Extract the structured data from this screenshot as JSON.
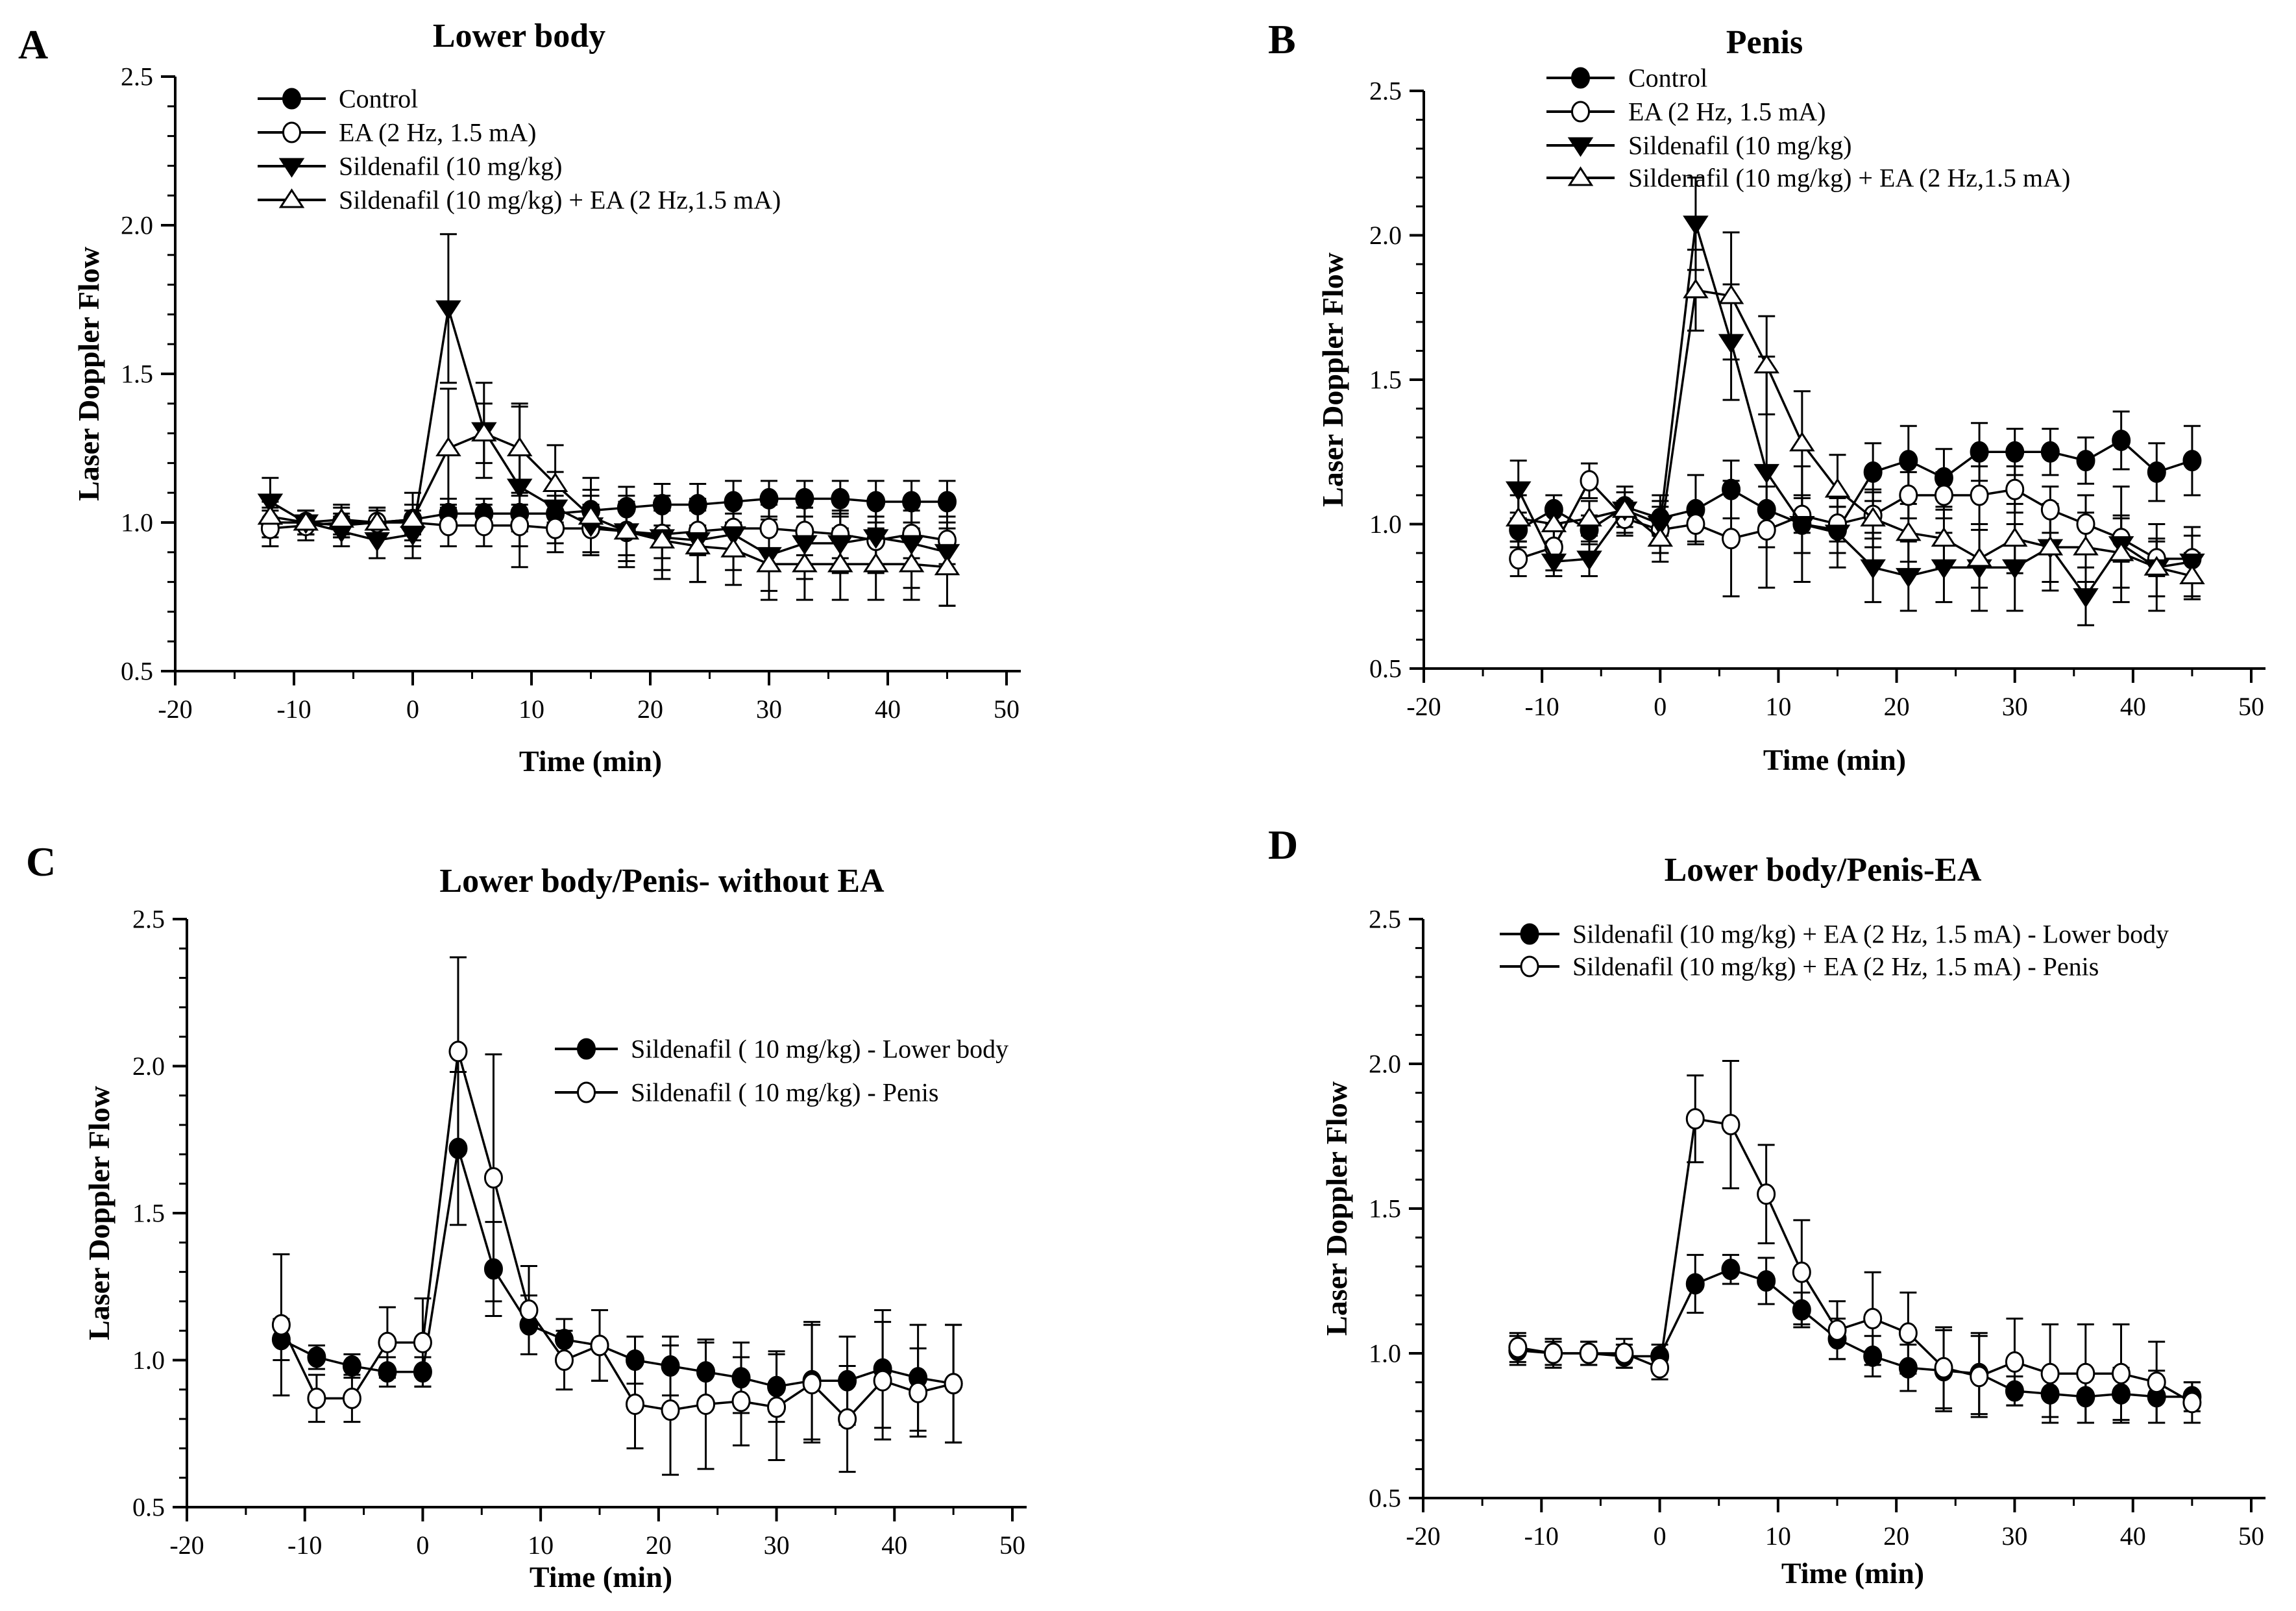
{
  "figure": {
    "background": "#ffffff",
    "ink": "#000000",
    "ylabel": "Laser Doppler Flow",
    "xlabel": "Time (min)"
  },
  "chart_data": [
    {
      "type": "line",
      "panel_label": "A",
      "title": "Lower body",
      "xlabel": "Time (min)",
      "ylabel": "Laser Doppler Flow",
      "xlim": [
        -20,
        50
      ],
      "ylim": [
        0.5,
        2.5
      ],
      "x_major_ticks": [
        -20,
        -10,
        0,
        10,
        20,
        30,
        40,
        50
      ],
      "x_tick_labels": [
        "-20",
        "-10",
        "0",
        "10",
        "20",
        "30",
        "40",
        "50"
      ],
      "y_major_ticks": [
        0.5,
        1.0,
        1.5,
        2.0,
        2.5
      ],
      "y_tick_labels": [
        "0.5",
        "1.0",
        "1.5",
        "2.0",
        "2.5"
      ],
      "x_minor_step": 5,
      "y_minor_step": 0.1,
      "grid": false,
      "legend_position": "upper-left-inside",
      "x": [
        -12,
        -9,
        -6,
        -3,
        0,
        3,
        6,
        9,
        12,
        15,
        18,
        21,
        24,
        27,
        30,
        33,
        36,
        39,
        42,
        45
      ],
      "series": [
        {
          "name": "Control",
          "marker": "circle-filled",
          "values": [
            1.0,
            1.0,
            0.99,
            1.0,
            1.01,
            1.03,
            1.03,
            1.03,
            1.03,
            1.04,
            1.05,
            1.06,
            1.06,
            1.07,
            1.08,
            1.08,
            1.08,
            1.07,
            1.07,
            1.07
          ],
          "errors": [
            0.05,
            0.04,
            0.04,
            0.04,
            0.05,
            0.05,
            0.05,
            0.06,
            0.06,
            0.07,
            0.07,
            0.07,
            0.07,
            0.07,
            0.06,
            0.06,
            0.06,
            0.07,
            0.07,
            0.07
          ]
        },
        {
          "name": "EA (2 Hz, 1.5 mA)",
          "marker": "circle-open",
          "values": [
            0.98,
            0.99,
            1.0,
            1.0,
            1.0,
            0.99,
            0.99,
            0.99,
            0.98,
            0.98,
            0.97,
            0.96,
            0.97,
            0.98,
            0.98,
            0.97,
            0.96,
            0.94,
            0.96,
            0.94
          ],
          "errors": [
            0.06,
            0.05,
            0.05,
            0.05,
            0.06,
            0.07,
            0.07,
            0.07,
            0.08,
            0.08,
            0.08,
            0.08,
            0.08,
            0.08,
            0.08,
            0.08,
            0.08,
            0.08,
            0.08,
            0.08
          ]
        },
        {
          "name": "Sildenafil (10 mg/kg)",
          "marker": "triangle-down-filled",
          "values": [
            1.07,
            1.0,
            0.97,
            0.94,
            0.96,
            1.72,
            1.31,
            1.12,
            1.05,
            0.99,
            0.97,
            0.95,
            0.94,
            0.96,
            0.89,
            0.93,
            0.93,
            0.95,
            0.93,
            0.9
          ],
          "errors": [
            0.08,
            0.04,
            0.05,
            0.06,
            0.08,
            0.25,
            0.16,
            0.27,
            0.12,
            0.1,
            0.12,
            0.14,
            0.14,
            0.12,
            0.12,
            0.12,
            0.1,
            0.12,
            0.15,
            0.18
          ]
        },
        {
          "name": "Sildenafil (10 mg/kg) + EA (2 Hz,1.5 mA)",
          "marker": "triangle-up-open",
          "values": [
            1.02,
            1.0,
            1.01,
            1.0,
            1.01,
            1.25,
            1.3,
            1.25,
            1.13,
            1.02,
            0.97,
            0.94,
            0.92,
            0.91,
            0.86,
            0.86,
            0.86,
            0.86,
            0.86,
            0.85
          ],
          "errors": [
            0.05,
            0.04,
            0.05,
            0.05,
            0.09,
            0.2,
            0.1,
            0.15,
            0.13,
            0.13,
            0.1,
            0.1,
            0.12,
            0.12,
            0.12,
            0.12,
            0.12,
            0.12,
            0.12,
            0.13
          ]
        }
      ]
    },
    {
      "type": "line",
      "panel_label": "B",
      "title": "Penis",
      "xlabel": "Time (min)",
      "ylabel": "Laser Doppler Flow",
      "xlim": [
        -20,
        50
      ],
      "ylim": [
        0.5,
        2.5
      ],
      "x_major_ticks": [
        -20,
        -10,
        0,
        10,
        20,
        30,
        40,
        50
      ],
      "x_tick_labels": [
        "-20",
        "-10",
        "0",
        "10",
        "20",
        "30",
        "40",
        "50"
      ],
      "y_major_ticks": [
        0.5,
        1.0,
        1.5,
        2.0,
        2.5
      ],
      "y_tick_labels": [
        "0.5",
        "1.0",
        "1.5",
        "2.0",
        "2.5"
      ],
      "x_minor_step": 5,
      "y_minor_step": 0.1,
      "grid": false,
      "legend_position": "upper-left-inside",
      "x": [
        -12,
        -9,
        -6,
        -3,
        0,
        3,
        6,
        9,
        12,
        15,
        18,
        21,
        24,
        27,
        30,
        33,
        36,
        39,
        42,
        45
      ],
      "series": [
        {
          "name": "Control",
          "marker": "circle-filled",
          "values": [
            0.98,
            1.05,
            0.98,
            1.06,
            1.02,
            1.05,
            1.12,
            1.05,
            1.0,
            0.98,
            1.18,
            1.22,
            1.16,
            1.25,
            1.25,
            1.25,
            1.22,
            1.29,
            1.18,
            1.22
          ],
          "errors": [
            0.06,
            0.05,
            0.05,
            0.05,
            0.06,
            0.12,
            0.1,
            0.08,
            0.1,
            0.08,
            0.1,
            0.12,
            0.1,
            0.1,
            0.08,
            0.08,
            0.08,
            0.1,
            0.1,
            0.12
          ]
        },
        {
          "name": "EA (2 Hz, 1.5 mA)",
          "marker": "circle-open",
          "values": [
            0.88,
            0.92,
            1.15,
            1.02,
            0.98,
            1.0,
            0.95,
            0.98,
            1.03,
            1.0,
            1.03,
            1.1,
            1.1,
            1.1,
            1.12,
            1.05,
            1.0,
            0.95,
            0.88,
            0.88
          ],
          "errors": [
            0.06,
            0.08,
            0.06,
            0.06,
            0.08,
            0.06,
            0.2,
            0.06,
            0.06,
            0.06,
            0.08,
            0.08,
            0.08,
            0.1,
            0.08,
            0.08,
            0.1,
            0.08,
            0.06,
            0.08
          ]
        },
        {
          "name": "Sildenafil (10 mg/kg)",
          "marker": "triangle-down-filled",
          "values": [
            1.12,
            0.87,
            0.88,
            1.05,
            1.0,
            2.04,
            1.63,
            1.18,
            1.0,
            0.97,
            0.85,
            0.82,
            0.85,
            0.85,
            0.85,
            0.92,
            0.75,
            0.93,
            0.85,
            0.87
          ],
          "errors": [
            0.1,
            0.05,
            0.06,
            0.08,
            0.1,
            0.16,
            0.2,
            0.4,
            0.2,
            0.12,
            0.12,
            0.12,
            0.12,
            0.15,
            0.15,
            0.15,
            0.1,
            0.2,
            0.15,
            0.12
          ]
        },
        {
          "name": "Sildenafil (10 mg/kg) + EA (2 Hz,1.5 mA)",
          "marker": "triangle-up-open",
          "values": [
            1.02,
            1.0,
            1.02,
            1.05,
            0.95,
            1.81,
            1.79,
            1.55,
            1.28,
            1.12,
            1.02,
            0.97,
            0.95,
            0.88,
            0.95,
            0.92,
            0.92,
            0.9,
            0.85,
            0.82
          ],
          "errors": [
            0.08,
            0.06,
            0.06,
            0.06,
            0.08,
            0.14,
            0.22,
            0.17,
            0.18,
            0.12,
            0.1,
            0.1,
            0.1,
            0.1,
            0.12,
            0.12,
            0.12,
            0.12,
            0.1,
            0.08
          ]
        }
      ]
    },
    {
      "type": "line",
      "panel_label": "C",
      "title": "Lower body/Penis- without EA",
      "xlabel": "Time (min)",
      "ylabel": "Laser Doppler Flow",
      "xlim": [
        -20,
        50
      ],
      "ylim": [
        0.5,
        2.5
      ],
      "x_major_ticks": [
        -20,
        -10,
        0,
        10,
        20,
        30,
        40,
        50
      ],
      "x_tick_labels": [
        "-20",
        "-10",
        "0",
        "10",
        "20",
        "30",
        "40",
        "50"
      ],
      "y_major_ticks": [
        0.5,
        1.0,
        1.5,
        2.0,
        2.5
      ],
      "y_tick_labels": [
        "0.5",
        "1.0",
        "1.5",
        "2.0",
        "2.5"
      ],
      "x_minor_step": 5,
      "y_minor_step": 0.1,
      "grid": false,
      "legend_position": "center-right-inside",
      "x": [
        -12,
        -9,
        -6,
        -3,
        0,
        3,
        6,
        9,
        12,
        15,
        18,
        21,
        24,
        27,
        30,
        33,
        36,
        39,
        42,
        45
      ],
      "series": [
        {
          "name": "Sildenafil ( 10 mg/kg)  - Lower body",
          "marker": "circle-filled",
          "values": [
            1.07,
            1.01,
            0.98,
            0.96,
            0.96,
            1.72,
            1.31,
            1.12,
            1.07,
            1.05,
            1.0,
            0.98,
            0.96,
            0.94,
            0.91,
            0.93,
            0.93,
            0.97,
            0.94,
            0.92
          ],
          "errors": [
            0.07,
            0.04,
            0.04,
            0.05,
            0.05,
            0.26,
            0.16,
            0.1,
            0.07,
            0.12,
            0.08,
            0.1,
            0.1,
            0.12,
            0.12,
            0.2,
            0.15,
            0.2,
            0.18,
            0.2
          ]
        },
        {
          "name": "Sildenafil ( 10 mg/kg)  - Penis",
          "marker": "circle-open",
          "values": [
            1.12,
            0.87,
            0.87,
            1.06,
            1.06,
            2.05,
            1.62,
            1.17,
            1.0,
            1.05,
            0.85,
            0.83,
            0.85,
            0.86,
            0.84,
            0.92,
            0.8,
            0.93,
            0.89,
            0.92
          ],
          "errors": [
            0.24,
            0.08,
            0.08,
            0.12,
            0.15,
            0.32,
            0.42,
            0.15,
            0.1,
            0.12,
            0.15,
            0.22,
            0.22,
            0.15,
            0.18,
            0.2,
            0.18,
            0.2,
            0.15,
            0.2
          ]
        }
      ]
    },
    {
      "type": "line",
      "panel_label": "D",
      "title": "Lower body/Penis-EA",
      "xlabel": "Time (min)",
      "ylabel": "Laser Doppler Flow",
      "xlim": [
        -20,
        50
      ],
      "ylim": [
        0.5,
        2.5
      ],
      "x_major_ticks": [
        -20,
        -10,
        0,
        10,
        20,
        30,
        40,
        50
      ],
      "x_tick_labels": [
        "-20",
        "-10",
        "0",
        "10",
        "20",
        "30",
        "40",
        "50"
      ],
      "y_major_ticks": [
        0.5,
        1.0,
        1.5,
        2.0,
        2.5
      ],
      "y_tick_labels": [
        "0.5",
        "1.0",
        "1.5",
        "2.0",
        "2.5"
      ],
      "x_minor_step": 5,
      "y_minor_step": 0.1,
      "grid": false,
      "legend_position": "upper-left-inside",
      "x": [
        -12,
        -9,
        -6,
        -3,
        0,
        3,
        6,
        9,
        12,
        15,
        18,
        21,
        24,
        27,
        30,
        33,
        36,
        39,
        42,
        45
      ],
      "series": [
        {
          "name": "Sildenafil (10 mg/kg) + EA (2 Hz, 1.5 mA)  - Lower body",
          "marker": "circle-filled",
          "values": [
            1.01,
            1.0,
            1.0,
            0.99,
            0.99,
            1.24,
            1.29,
            1.25,
            1.15,
            1.05,
            0.99,
            0.95,
            0.94,
            0.93,
            0.87,
            0.86,
            0.85,
            0.86,
            0.85,
            0.85
          ],
          "errors": [
            0.05,
            0.04,
            0.04,
            0.04,
            0.04,
            0.1,
            0.05,
            0.08,
            0.06,
            0.07,
            0.07,
            0.08,
            0.14,
            0.14,
            0.05,
            0.08,
            0.09,
            0.09,
            0.09,
            0.05
          ]
        },
        {
          "name": "Sildenafil (10 mg/kg) + EA (2 Hz, 1.5 mA)  - Penis",
          "marker": "circle-open",
          "values": [
            1.02,
            1.0,
            1.0,
            1.0,
            0.95,
            1.81,
            1.79,
            1.55,
            1.28,
            1.08,
            1.12,
            1.07,
            0.95,
            0.92,
            0.97,
            0.93,
            0.93,
            0.93,
            0.9,
            0.83
          ],
          "errors": [
            0.05,
            0.05,
            0.04,
            0.05,
            0.04,
            0.15,
            0.22,
            0.17,
            0.18,
            0.1,
            0.16,
            0.14,
            0.14,
            0.14,
            0.15,
            0.17,
            0.17,
            0.17,
            0.14,
            0.07
          ]
        }
      ]
    }
  ]
}
